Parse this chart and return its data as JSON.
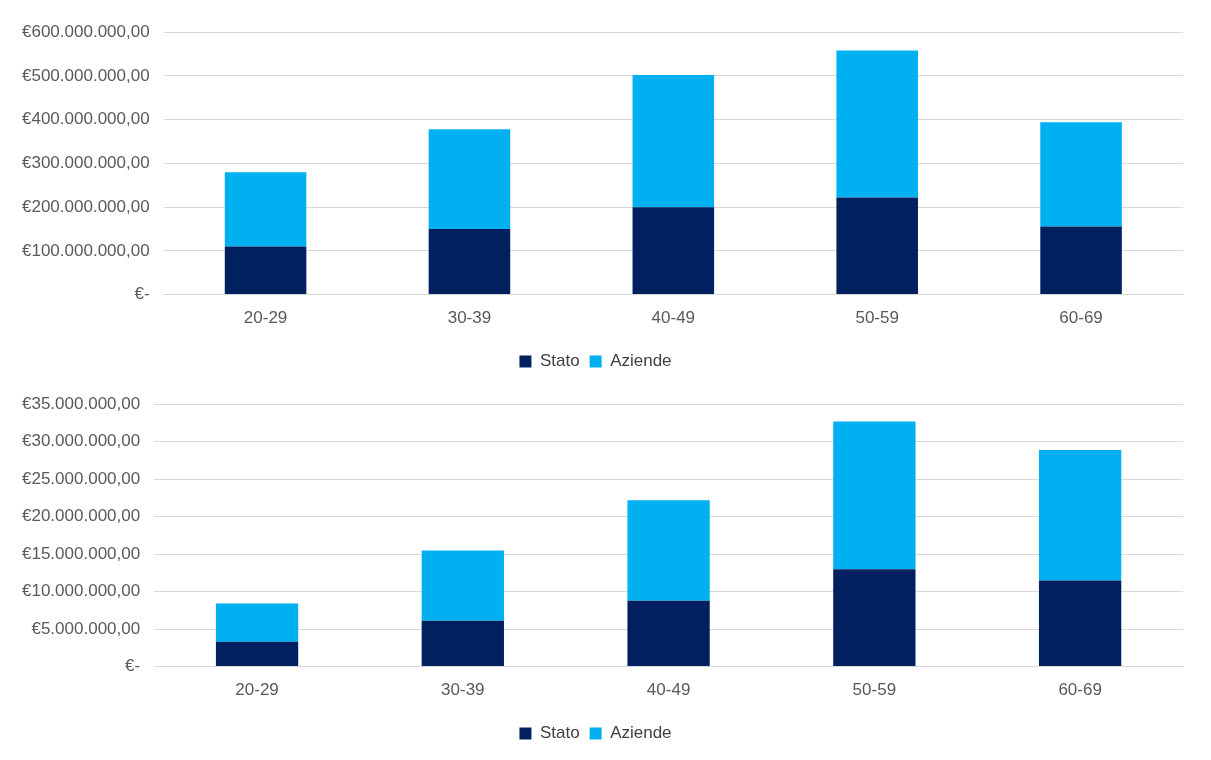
{
  "chart_data": [
    {
      "type": "bar",
      "stacked": true,
      "categories": [
        "20-29",
        "30-39",
        "40-49",
        "50-59",
        "60-69"
      ],
      "series": [
        {
          "name": "Stato",
          "color": "#002060",
          "values": [
            110000000,
            150000000,
            200000000,
            222000000,
            156000000
          ]
        },
        {
          "name": "Aziende",
          "color": "#00b0f0",
          "values": [
            170000000,
            228000000,
            302000000,
            336000000,
            238000000
          ]
        }
      ],
      "ylim": [
        0,
        600000000
      ],
      "yticks": [
        {
          "value": 0,
          "label": "€-"
        },
        {
          "value": 100000000,
          "label": "€100.000.000,00"
        },
        {
          "value": 200000000,
          "label": "€200.000.000,00"
        },
        {
          "value": 300000000,
          "label": "€300.000.000,00"
        },
        {
          "value": 400000000,
          "label": "€400.000.000,00"
        },
        {
          "value": 500000000,
          "label": "€500.000.000,00"
        },
        {
          "value": 600000000,
          "label": "€600.000.000,00"
        }
      ],
      "grid": "y",
      "legend": "bottom"
    },
    {
      "type": "bar",
      "stacked": true,
      "categories": [
        "20-29",
        "30-39",
        "40-49",
        "50-59",
        "60-69"
      ],
      "series": [
        {
          "name": "Stato",
          "color": "#002060",
          "values": [
            3300000,
            6100000,
            8800000,
            13000000,
            11500000
          ]
        },
        {
          "name": "Aziende",
          "color": "#00b0f0",
          "values": [
            5100000,
            9400000,
            13400000,
            19700000,
            17400000
          ]
        }
      ],
      "ylim": [
        0,
        35000000
      ],
      "yticks": [
        {
          "value": 0,
          "label": "€-"
        },
        {
          "value": 5000000,
          "label": "€5.000.000,00"
        },
        {
          "value": 10000000,
          "label": "€10.000.000,00"
        },
        {
          "value": 15000000,
          "label": "€15.000.000,00"
        },
        {
          "value": 20000000,
          "label": "€20.000.000,00"
        },
        {
          "value": 25000000,
          "label": "€25.000.000,00"
        },
        {
          "value": 30000000,
          "label": "€30.000.000,00"
        },
        {
          "value": 35000000,
          "label": "€35.000.000,00"
        }
      ],
      "grid": "y",
      "legend": "bottom"
    }
  ]
}
